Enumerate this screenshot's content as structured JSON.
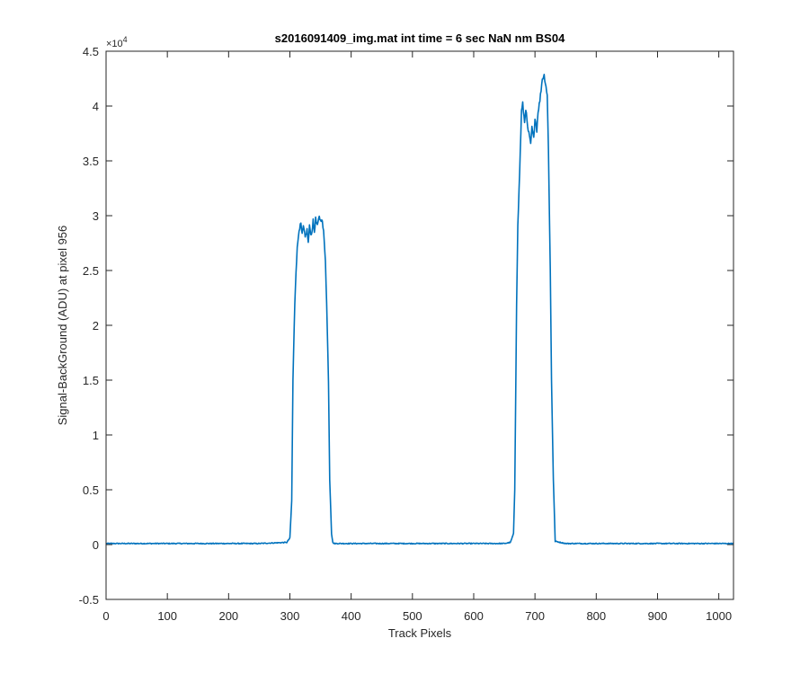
{
  "chart_data": {
    "type": "line",
    "title": "s2016091409_img.mat int time = 6 sec  NaN nm BS04",
    "xlabel": "Track Pixels",
    "ylabel": "Signal-BackGround (ADU) at pixel 956",
    "y_exponent_base": "×10",
    "y_exponent_power": "4",
    "xlim": [
      0,
      1024
    ],
    "ylim": [
      -0.5,
      4.5
    ],
    "y_scale_factor": 10000,
    "xticks": [
      0,
      100,
      200,
      300,
      400,
      500,
      600,
      700,
      800,
      900,
      1000
    ],
    "yticks": [
      -0.5,
      0,
      0.5,
      1,
      1.5,
      2,
      2.5,
      3,
      3.5,
      4,
      4.5
    ],
    "xtick_labels": [
      "0",
      "100",
      "200",
      "300",
      "400",
      "500",
      "600",
      "700",
      "800",
      "900",
      "1000"
    ],
    "ytick_labels": [
      "-0.5",
      "0",
      "0.5",
      "1",
      "1.5",
      "2",
      "2.5",
      "3",
      "3.5",
      "4",
      "4.5"
    ],
    "grid": false,
    "series_color": "#0072BD",
    "series": [
      {
        "name": "",
        "x": [
          0,
          50,
          100,
          150,
          200,
          250,
          295,
          300,
          303,
          305,
          308,
          310,
          312,
          315,
          318,
          320,
          322,
          325,
          328,
          330,
          332,
          335,
          338,
          340,
          342,
          345,
          348,
          350,
          352,
          355,
          358,
          360,
          363,
          365,
          368,
          370,
          372,
          400,
          450,
          500,
          550,
          600,
          650,
          660,
          665,
          667,
          670,
          672,
          675,
          678,
          680,
          683,
          685,
          688,
          690,
          693,
          695,
          698,
          700,
          703,
          705,
          708,
          710,
          712,
          715,
          718,
          720,
          722,
          725,
          727,
          730,
          733,
          750,
          800,
          850,
          900,
          950,
          1000,
          1024
        ],
        "y": [
          0.01,
          0.01,
          0.01,
          0.01,
          0.01,
          0.01,
          0.02,
          0.06,
          0.4,
          1.5,
          2.2,
          2.5,
          2.7,
          2.88,
          2.92,
          2.82,
          2.9,
          2.8,
          2.87,
          2.75,
          2.9,
          2.82,
          2.95,
          2.85,
          2.97,
          2.9,
          3.0,
          2.95,
          2.98,
          2.85,
          2.6,
          2.2,
          1.5,
          0.6,
          0.1,
          0.02,
          0.01,
          0.01,
          0.01,
          0.01,
          0.01,
          0.01,
          0.01,
          0.02,
          0.1,
          0.5,
          2.2,
          2.9,
          3.4,
          3.95,
          4.02,
          3.85,
          3.98,
          3.8,
          3.75,
          3.65,
          3.8,
          3.7,
          3.9,
          3.78,
          3.95,
          4.05,
          4.15,
          4.25,
          4.28,
          4.18,
          4.1,
          3.6,
          2.5,
          1.5,
          0.6,
          0.03,
          0.01,
          0.01,
          0.01,
          0.01,
          0.01,
          0.01,
          0.01
        ]
      }
    ]
  }
}
